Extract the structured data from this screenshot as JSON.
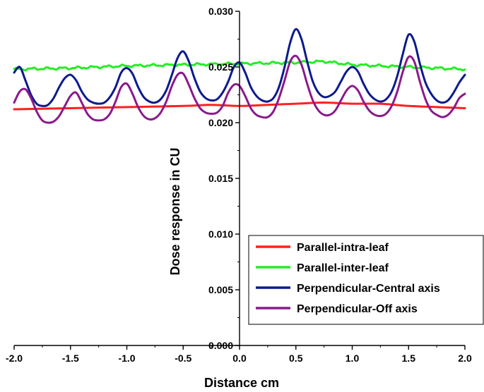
{
  "chart_data": {
    "type": "line",
    "title": "",
    "xlabel": "Distance cm",
    "ylabel": "Dose response in CU",
    "xlim": [
      -2.0,
      2.0
    ],
    "ylim": [
      0.0,
      0.03
    ],
    "x_ticks": [
      "-2.0",
      "-1.5",
      "-1.0",
      "-0.5",
      "0.0",
      "0.5",
      "1.0",
      "1.5",
      "2.0"
    ],
    "y_ticks": [
      "0.000",
      "0.005",
      "0.010",
      "0.015",
      "0.020",
      "0.025",
      "0.030"
    ],
    "grid": false,
    "legend_position": "bottom-right",
    "series": [
      {
        "name": "Parallel-intra-leaf",
        "color": "#ff2020",
        "x": [
          -2.0,
          -1.5,
          -1.0,
          -0.5,
          -0.25,
          0.0,
          0.25,
          0.5,
          0.75,
          1.0,
          1.25,
          1.5,
          1.75,
          2.0
        ],
        "y": [
          0.0212,
          0.0213,
          0.0214,
          0.0215,
          0.0216,
          0.0215,
          0.0216,
          0.0217,
          0.0218,
          0.0217,
          0.0217,
          0.0215,
          0.0214,
          0.0213
        ]
      },
      {
        "name": "Parallel-inter-leaf",
        "color": "#22ee22",
        "x": [
          -2.0,
          -1.5,
          -1.0,
          -0.5,
          0.0,
          0.5,
          0.75,
          1.0,
          1.5,
          2.0
        ],
        "y": [
          0.0248,
          0.0249,
          0.0251,
          0.0252,
          0.0253,
          0.0254,
          0.0255,
          0.0252,
          0.025,
          0.0248
        ],
        "wiggle": true
      },
      {
        "name": "Perpendicular-Central axis",
        "color": "#0b1a8c",
        "x": [
          -2.0,
          -1.95,
          -1.9,
          -1.85,
          -1.8,
          -1.75,
          -1.7,
          -1.65,
          -1.6,
          -1.55,
          -1.5,
          -1.45,
          -1.4,
          -1.35,
          -1.3,
          -1.25,
          -1.2,
          -1.15,
          -1.1,
          -1.05,
          -1.0,
          -0.95,
          -0.9,
          -0.85,
          -0.8,
          -0.75,
          -0.7,
          -0.65,
          -0.6,
          -0.55,
          -0.5,
          -0.45,
          -0.4,
          -0.35,
          -0.3,
          -0.25,
          -0.2,
          -0.15,
          -0.1,
          -0.05,
          0.0,
          0.05,
          0.1,
          0.15,
          0.2,
          0.25,
          0.3,
          0.35,
          0.4,
          0.45,
          0.5,
          0.55,
          0.6,
          0.65,
          0.7,
          0.75,
          0.8,
          0.85,
          0.9,
          0.95,
          1.0,
          1.05,
          1.1,
          1.15,
          1.2,
          1.25,
          1.3,
          1.35,
          1.4,
          1.45,
          1.5,
          1.55,
          1.6,
          1.65,
          1.7,
          1.75,
          1.8,
          1.85,
          1.9,
          1.95,
          2.0
        ],
        "y": [
          0.0245,
          0.025,
          0.0238,
          0.0225,
          0.0217,
          0.0215,
          0.0216,
          0.0222,
          0.0232,
          0.024,
          0.0243,
          0.0238,
          0.0228,
          0.0221,
          0.0218,
          0.0217,
          0.0218,
          0.0223,
          0.0232,
          0.0245,
          0.0249,
          0.0244,
          0.0232,
          0.0223,
          0.0219,
          0.0218,
          0.0221,
          0.0229,
          0.0243,
          0.0258,
          0.0264,
          0.0255,
          0.024,
          0.0228,
          0.0222,
          0.022,
          0.0221,
          0.0227,
          0.0237,
          0.025,
          0.0254,
          0.0245,
          0.0232,
          0.0224,
          0.022,
          0.0219,
          0.0222,
          0.0232,
          0.025,
          0.0272,
          0.0284,
          0.0275,
          0.0255,
          0.0237,
          0.0227,
          0.0223,
          0.0224,
          0.0228,
          0.0237,
          0.0246,
          0.025,
          0.0246,
          0.0235,
          0.0226,
          0.0221,
          0.0219,
          0.0221,
          0.0228,
          0.0242,
          0.0262,
          0.0279,
          0.0273,
          0.0253,
          0.0236,
          0.0226,
          0.022,
          0.0218,
          0.022,
          0.0227,
          0.0236,
          0.0243
        ]
      },
      {
        "name": "Perpendicular-Off axis",
        "color": "#8a1a8c",
        "x": [
          -2.0,
          -1.95,
          -1.9,
          -1.85,
          -1.8,
          -1.75,
          -1.7,
          -1.65,
          -1.6,
          -1.55,
          -1.5,
          -1.45,
          -1.4,
          -1.35,
          -1.3,
          -1.25,
          -1.2,
          -1.15,
          -1.1,
          -1.05,
          -1.0,
          -0.95,
          -0.9,
          -0.85,
          -0.8,
          -0.75,
          -0.7,
          -0.65,
          -0.6,
          -0.55,
          -0.5,
          -0.45,
          -0.4,
          -0.35,
          -0.3,
          -0.25,
          -0.2,
          -0.15,
          -0.1,
          -0.05,
          0.0,
          0.05,
          0.1,
          0.15,
          0.2,
          0.25,
          0.3,
          0.35,
          0.4,
          0.45,
          0.5,
          0.55,
          0.6,
          0.65,
          0.7,
          0.75,
          0.8,
          0.85,
          0.9,
          0.95,
          1.0,
          1.05,
          1.1,
          1.15,
          1.2,
          1.25,
          1.3,
          1.35,
          1.4,
          1.45,
          1.5,
          1.55,
          1.6,
          1.65,
          1.7,
          1.75,
          1.8,
          1.85,
          1.9,
          1.95,
          2.0
        ],
        "y": [
          0.0218,
          0.0228,
          0.023,
          0.0222,
          0.021,
          0.0202,
          0.02,
          0.0201,
          0.0206,
          0.0215,
          0.0224,
          0.0227,
          0.0218,
          0.0208,
          0.0203,
          0.0202,
          0.0203,
          0.0208,
          0.0219,
          0.0232,
          0.0235,
          0.0226,
          0.0214,
          0.0206,
          0.0203,
          0.0204,
          0.0209,
          0.0219,
          0.0233,
          0.0243,
          0.0244,
          0.0234,
          0.0222,
          0.0213,
          0.0209,
          0.0208,
          0.0209,
          0.0215,
          0.0227,
          0.0234,
          0.0233,
          0.0224,
          0.0213,
          0.0207,
          0.0205,
          0.0205,
          0.021,
          0.0222,
          0.0238,
          0.0255,
          0.026,
          0.0252,
          0.0235,
          0.022,
          0.0211,
          0.0207,
          0.0207,
          0.0211,
          0.022,
          0.0229,
          0.0233,
          0.0229,
          0.0219,
          0.0211,
          0.0207,
          0.0206,
          0.0208,
          0.0215,
          0.0228,
          0.0246,
          0.0259,
          0.0255,
          0.0237,
          0.0221,
          0.0211,
          0.0207,
          0.0205,
          0.0207,
          0.0213,
          0.0222,
          0.0226
        ]
      }
    ]
  }
}
